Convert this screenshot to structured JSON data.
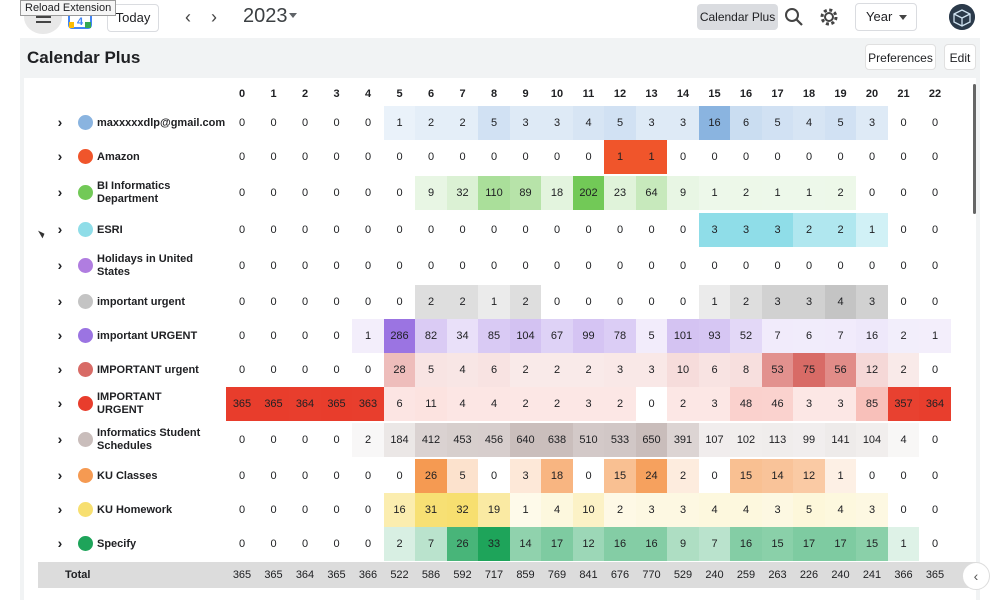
{
  "extension_tip": "Reload Extension",
  "toolbar": {
    "calendar_icon_text": "4",
    "today_label": "Today",
    "prev_icon": "chevron-left-icon",
    "next_icon": "chevron-right-icon",
    "year": "2023",
    "calendar_plus_label": "Calendar Plus",
    "view_select": "Year"
  },
  "panel": {
    "title": "Calendar Plus",
    "preferences_label": "Preferences",
    "edit_label": "Edit"
  },
  "columns": [
    "0",
    "1",
    "2",
    "3",
    "4",
    "5",
    "6",
    "7",
    "8",
    "9",
    "10",
    "11",
    "12",
    "13",
    "14",
    "15",
    "16",
    "17",
    "18",
    "19",
    "20",
    "21",
    "22"
  ],
  "colors": {
    "maxxxxxdlp@gmail.com": "#8ab4e0",
    "Amazon": "#f0552b",
    "BI Informatics Department": "#72c957",
    "ESRI": "#8fdde8",
    "Holidays in United States": "#b07de0",
    "important urgent": "#c4c4c4",
    "important URGENT": "#9b74e2",
    "IMPORTANT urgent": "#d86b66",
    "IMPORTANT URGENT": "#e83d2c",
    "Informatics Student Schedules": "#c9bdbb",
    "KU Classes": "#f59a52",
    "KU Homework": "#f7df70",
    "Specify": "#1ea45a"
  },
  "rows": [
    {
      "label": "maxxxxxdlp@gmail.com",
      "color": "#8ab4e0",
      "values": [
        0,
        0,
        0,
        0,
        0,
        1,
        2,
        2,
        5,
        3,
        3,
        4,
        5,
        3,
        3,
        16,
        6,
        5,
        4,
        5,
        3,
        0,
        0
      ]
    },
    {
      "label": "Amazon",
      "color": "#f0552b",
      "values": [
        0,
        0,
        0,
        0,
        0,
        0,
        0,
        0,
        0,
        0,
        0,
        0,
        1,
        1,
        0,
        0,
        0,
        0,
        0,
        0,
        0,
        0,
        0
      ]
    },
    {
      "label": "BI Informatics Department",
      "color": "#72c957",
      "values": [
        0,
        0,
        0,
        0,
        0,
        0,
        9,
        32,
        110,
        89,
        18,
        202,
        23,
        64,
        9,
        1,
        2,
        1,
        1,
        2,
        0,
        0,
        0
      ]
    },
    {
      "label": "ESRI",
      "color": "#8fdde8",
      "values": [
        0,
        0,
        0,
        0,
        0,
        0,
        0,
        0,
        0,
        0,
        0,
        0,
        0,
        0,
        0,
        3,
        3,
        3,
        2,
        2,
        1,
        0,
        0
      ]
    },
    {
      "label": "Holidays in United States",
      "color": "#b07de0",
      "values": [
        0,
        0,
        0,
        0,
        0,
        0,
        0,
        0,
        0,
        0,
        0,
        0,
        0,
        0,
        0,
        0,
        0,
        0,
        0,
        0,
        0,
        0,
        0
      ]
    },
    {
      "label": "important urgent",
      "color": "#c4c4c4",
      "values": [
        0,
        0,
        0,
        0,
        0,
        0,
        2,
        2,
        1,
        2,
        0,
        0,
        0,
        0,
        0,
        1,
        2,
        3,
        3,
        4,
        3,
        0,
        0
      ]
    },
    {
      "label": "important URGENT",
      "color": "#9b74e2",
      "values": [
        0,
        0,
        0,
        0,
        1,
        286,
        82,
        34,
        85,
        104,
        67,
        99,
        78,
        5,
        101,
        93,
        52,
        7,
        6,
        7,
        16,
        2,
        1
      ]
    },
    {
      "label": "IMPORTANT urgent",
      "color": "#d86b66",
      "values": [
        0,
        0,
        0,
        0,
        0,
        28,
        5,
        4,
        6,
        2,
        2,
        2,
        3,
        3,
        10,
        6,
        8,
        53,
        75,
        56,
        12,
        2,
        0
      ]
    },
    {
      "label": "IMPORTANT URGENT",
      "color": "#e83d2c",
      "values": [
        365,
        365,
        364,
        365,
        363,
        6,
        11,
        4,
        4,
        2,
        2,
        3,
        2,
        0,
        2,
        3,
        48,
        46,
        3,
        3,
        85,
        357,
        364
      ]
    },
    {
      "label": "Informatics Student Schedules",
      "color": "#c9bdbb",
      "values": [
        0,
        0,
        0,
        0,
        2,
        184,
        412,
        453,
        456,
        640,
        638,
        510,
        533,
        650,
        391,
        107,
        102,
        113,
        99,
        141,
        104,
        4,
        0
      ]
    },
    {
      "label": "KU Classes",
      "color": "#f59a52",
      "values": [
        0,
        0,
        0,
        0,
        0,
        0,
        26,
        5,
        0,
        3,
        18,
        0,
        15,
        24,
        2,
        0,
        15,
        14,
        12,
        1,
        0,
        0,
        0
      ]
    },
    {
      "label": "KU Homework",
      "color": "#f7df70",
      "values": [
        0,
        0,
        0,
        0,
        0,
        16,
        31,
        32,
        19,
        1,
        4,
        10,
        2,
        3,
        3,
        4,
        4,
        3,
        5,
        4,
        3,
        0,
        0
      ]
    },
    {
      "label": "Specify",
      "color": "#1ea45a",
      "values": [
        0,
        0,
        0,
        0,
        0,
        2,
        7,
        26,
        33,
        14,
        17,
        12,
        16,
        16,
        9,
        7,
        16,
        15,
        17,
        17,
        15,
        1,
        0
      ]
    }
  ],
  "total": {
    "label": "Total",
    "values": [
      365,
      365,
      364,
      365,
      366,
      522,
      586,
      592,
      717,
      859,
      769,
      841,
      676,
      770,
      529,
      240,
      259,
      263,
      226,
      240,
      241,
      366,
      365
    ]
  }
}
